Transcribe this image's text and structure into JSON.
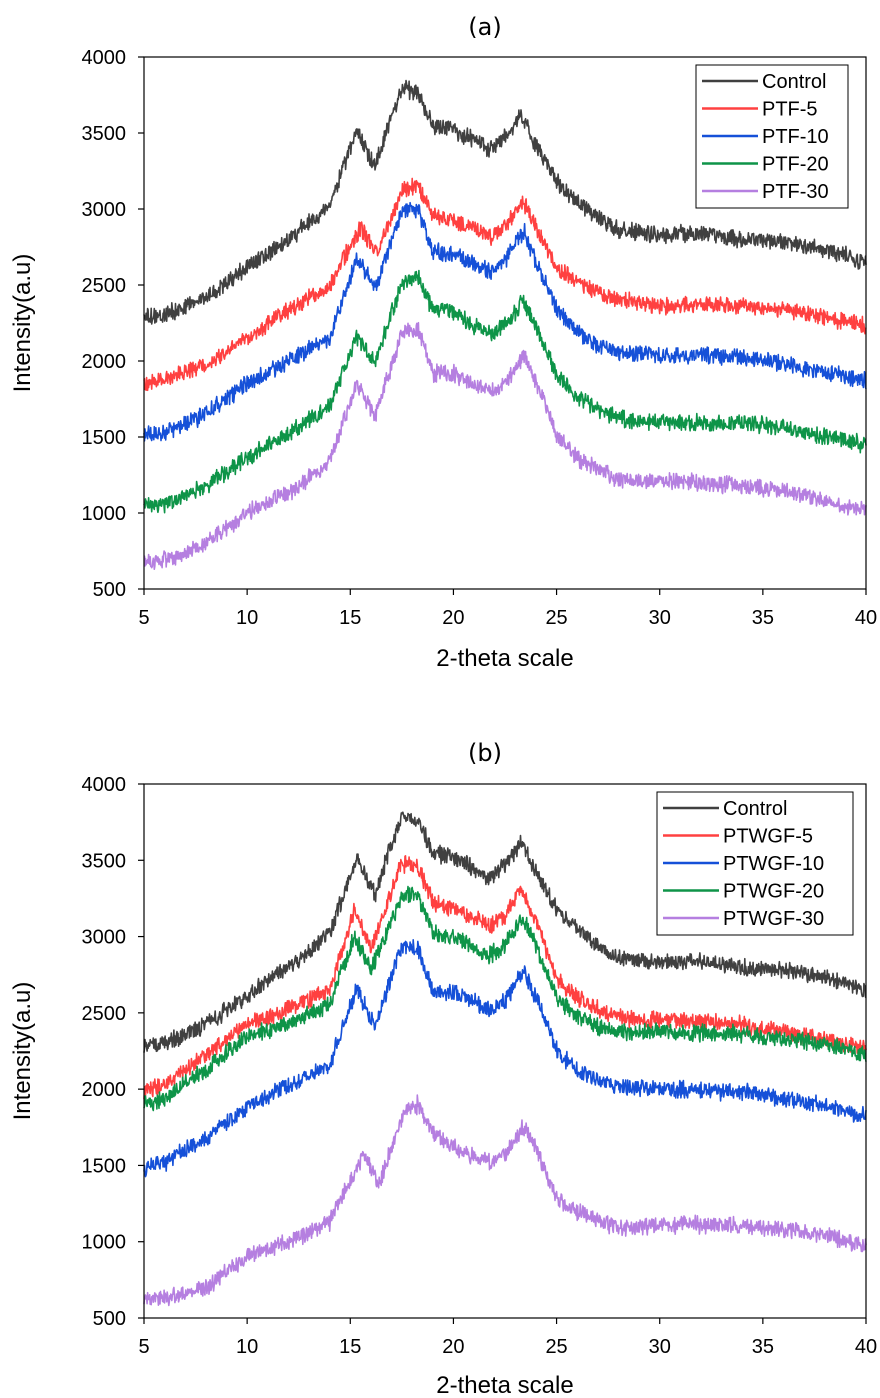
{
  "chart_data": [
    {
      "type": "line",
      "title": "(a)",
      "xlabel": "2-theta scale",
      "ylabel": "Intensity(a.u)",
      "xlim": [
        5,
        40
      ],
      "ylim": [
        500,
        4000
      ],
      "xticks": [
        5,
        10,
        15,
        20,
        25,
        30,
        35,
        40
      ],
      "yticks": [
        500,
        1000,
        1500,
        2000,
        2500,
        3000,
        3500,
        4000
      ],
      "grid": false,
      "legend_position": "top-right",
      "series": [
        {
          "name": "Control",
          "color": "#404040",
          "x": [
            5,
            6,
            8,
            10,
            12,
            14,
            15.3,
            16.2,
            17.5,
            18.3,
            19,
            20,
            21,
            21.7,
            22.5,
            23.3,
            24,
            25,
            26,
            27,
            28,
            30,
            32,
            34,
            36,
            38,
            40
          ],
          "y": [
            2290,
            2300,
            2420,
            2620,
            2800,
            3020,
            3520,
            3280,
            3800,
            3750,
            3550,
            3520,
            3450,
            3380,
            3470,
            3620,
            3420,
            3180,
            3050,
            2950,
            2860,
            2830,
            2840,
            2800,
            2780,
            2740,
            2650
          ]
        },
        {
          "name": "PTF-5",
          "color": "#ff4040",
          "x": [
            5,
            6,
            8,
            10,
            12,
            14,
            15.5,
            16.3,
            17.5,
            18.3,
            19,
            20,
            21,
            21.8,
            22.5,
            23.4,
            24,
            25,
            26,
            27,
            28,
            30,
            32,
            34,
            36,
            38,
            40
          ],
          "y": [
            1860,
            1870,
            1980,
            2150,
            2330,
            2500,
            2880,
            2700,
            3120,
            3160,
            2950,
            2920,
            2880,
            2820,
            2880,
            3050,
            2880,
            2620,
            2520,
            2450,
            2400,
            2360,
            2380,
            2360,
            2340,
            2290,
            2230
          ]
        },
        {
          "name": "PTF-10",
          "color": "#1550d8",
          "x": [
            5,
            6,
            8,
            10,
            12,
            14,
            15.3,
            16.2,
            17.5,
            18.3,
            19,
            20,
            21,
            21.8,
            22.5,
            23.4,
            24,
            25,
            26,
            27,
            28,
            30,
            32,
            34,
            36,
            38,
            40
          ],
          "y": [
            1520,
            1530,
            1650,
            1850,
            2000,
            2150,
            2680,
            2480,
            2980,
            3000,
            2720,
            2700,
            2640,
            2580,
            2660,
            2860,
            2650,
            2350,
            2200,
            2100,
            2060,
            2040,
            2040,
            2030,
            1980,
            1930,
            1870
          ]
        },
        {
          "name": "PTF-20",
          "color": "#0e9448",
          "x": [
            5,
            6,
            8,
            10,
            12,
            14,
            15.3,
            16.2,
            17.5,
            18.3,
            19,
            20,
            21,
            21.8,
            22.5,
            23.4,
            24,
            25,
            26,
            27,
            28,
            30,
            32,
            34,
            36,
            38,
            40
          ],
          "y": [
            1050,
            1060,
            1180,
            1360,
            1520,
            1700,
            2160,
            1980,
            2520,
            2560,
            2330,
            2330,
            2230,
            2180,
            2240,
            2400,
            2220,
            1920,
            1760,
            1680,
            1620,
            1600,
            1590,
            1600,
            1560,
            1500,
            1450
          ]
        },
        {
          "name": "PTF-30",
          "color": "#b57fe0",
          "x": [
            5,
            6,
            8,
            10,
            12,
            14,
            15.3,
            16.2,
            17.5,
            18.3,
            19,
            20,
            21,
            21.8,
            22.5,
            23.4,
            24,
            25,
            26,
            27,
            28,
            30,
            32,
            34,
            36,
            38,
            40
          ],
          "y": [
            680,
            690,
            800,
            1000,
            1130,
            1330,
            1850,
            1640,
            2190,
            2200,
            1920,
            1920,
            1840,
            1800,
            1840,
            2040,
            1860,
            1520,
            1360,
            1290,
            1220,
            1210,
            1200,
            1180,
            1150,
            1080,
            1010
          ]
        }
      ]
    },
    {
      "type": "line",
      "title": "(b)",
      "xlabel": "2-theta scale",
      "ylabel": "Intensity(a.u)",
      "xlim": [
        5,
        40
      ],
      "ylim": [
        500,
        4000
      ],
      "xticks": [
        5,
        10,
        15,
        20,
        25,
        30,
        35,
        40
      ],
      "yticks": [
        500,
        1000,
        1500,
        2000,
        2500,
        3000,
        3500,
        4000
      ],
      "grid": false,
      "legend_position": "top-right",
      "series": [
        {
          "name": "Control",
          "color": "#404040",
          "x": [
            5,
            6,
            8,
            10,
            12,
            14,
            15.3,
            16.2,
            17.5,
            18.3,
            19,
            20,
            21,
            21.7,
            22.5,
            23.3,
            24,
            25,
            26,
            27,
            28,
            30,
            32,
            34,
            36,
            38,
            40
          ],
          "y": [
            2290,
            2300,
            2420,
            2620,
            2800,
            3020,
            3520,
            3280,
            3800,
            3750,
            3550,
            3520,
            3450,
            3380,
            3470,
            3620,
            3420,
            3180,
            3050,
            2950,
            2860,
            2830,
            2840,
            2800,
            2780,
            2740,
            2650
          ]
        },
        {
          "name": "PTWGF-5",
          "color": "#ff4040",
          "x": [
            5,
            6,
            8,
            10,
            12,
            14,
            15.2,
            16,
            17.5,
            18.3,
            19,
            20,
            21,
            21.8,
            22.5,
            23.3,
            24,
            25,
            26,
            27,
            28,
            30,
            32,
            34,
            36,
            38,
            40
          ],
          "y": [
            1990,
            2030,
            2220,
            2420,
            2520,
            2650,
            3180,
            2920,
            3480,
            3460,
            3230,
            3180,
            3120,
            3070,
            3140,
            3310,
            3100,
            2720,
            2600,
            2530,
            2470,
            2450,
            2440,
            2420,
            2380,
            2320,
            2260
          ]
        },
        {
          "name": "PTWGF-10",
          "color": "#1550d8",
          "x": [
            5,
            6,
            8,
            10,
            12,
            14,
            15.3,
            16.2,
            17.5,
            18.3,
            19,
            20,
            21,
            21.8,
            22.5,
            23.4,
            24,
            25,
            26,
            27,
            28,
            30,
            32,
            34,
            36,
            38,
            40
          ],
          "y": [
            1480,
            1520,
            1680,
            1880,
            2030,
            2160,
            2660,
            2420,
            2940,
            2910,
            2640,
            2640,
            2570,
            2520,
            2580,
            2780,
            2600,
            2260,
            2120,
            2060,
            2010,
            2000,
            1990,
            1980,
            1940,
            1900,
            1820
          ]
        },
        {
          "name": "PTWGF-20",
          "color": "#0e9448",
          "x": [
            5,
            6,
            8,
            10,
            12,
            14,
            15.2,
            16,
            17.5,
            18.3,
            19,
            20,
            21,
            21.8,
            22.5,
            23.3,
            24,
            25,
            26,
            27,
            28,
            30,
            32,
            34,
            36,
            38,
            40
          ],
          "y": [
            1900,
            1940,
            2130,
            2340,
            2430,
            2560,
            3000,
            2780,
            3270,
            3270,
            3020,
            2990,
            2930,
            2880,
            2950,
            3130,
            2940,
            2600,
            2480,
            2410,
            2380,
            2380,
            2370,
            2360,
            2330,
            2300,
            2220
          ]
        },
        {
          "name": "PTWGF-30",
          "color": "#b57fe0",
          "x": [
            5,
            6,
            8,
            10,
            12,
            14,
            15.6,
            16.4,
            17.6,
            18.3,
            19,
            20,
            21,
            21.8,
            22.5,
            23.4,
            24,
            25,
            26,
            27,
            28,
            30,
            32,
            34,
            36,
            38,
            40
          ],
          "y": [
            620,
            630,
            700,
            900,
            1000,
            1130,
            1560,
            1380,
            1860,
            1900,
            1700,
            1620,
            1560,
            1520,
            1580,
            1750,
            1610,
            1280,
            1200,
            1150,
            1090,
            1110,
            1110,
            1100,
            1080,
            1040,
            970
          ]
        }
      ]
    }
  ]
}
